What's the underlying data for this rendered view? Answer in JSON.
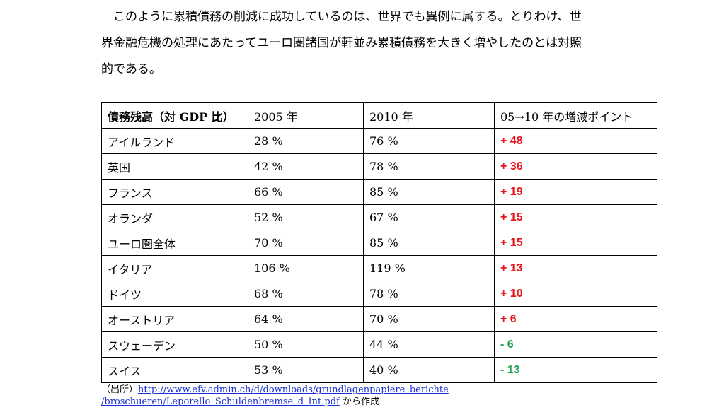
{
  "paragraph": {
    "line1": "このように累積債務の削減に成功しているのは、世界でも異例に属する。とりわけ、世",
    "line2": "界金融危機の処理にあたってユーロ圏諸国が軒並み累積債務を大きく増やしたのとは対照",
    "line3": "的である。"
  },
  "table": {
    "headers": [
      "債務残高（対 GDP 比）",
      "2005 年",
      "2010 年",
      "05→10 年の増減ポイント"
    ],
    "rows": [
      {
        "country": "アイルランド",
        "y2005": "28 %",
        "y2010": "76 %",
        "change": "+ 48",
        "direction": "increase"
      },
      {
        "country": "英国",
        "y2005": "42 %",
        "y2010": "78 %",
        "change": "+ 36",
        "direction": "increase"
      },
      {
        "country": "フランス",
        "y2005": "66 %",
        "y2010": "85 %",
        "change": "+ 19",
        "direction": "increase"
      },
      {
        "country": "オランダ",
        "y2005": "52 %",
        "y2010": "67 %",
        "change": "+ 15",
        "direction": "increase"
      },
      {
        "country": "ユーロ圏全体",
        "y2005": "70 %",
        "y2010": "85 %",
        "change": "+ 15",
        "direction": "increase"
      },
      {
        "country": "イタリア",
        "y2005": "106 %",
        "y2010": "119 %",
        "change": "+ 13",
        "direction": "increase"
      },
      {
        "country": "ドイツ",
        "y2005": "68 %",
        "y2010": "78 %",
        "change": "+ 10",
        "direction": "increase"
      },
      {
        "country": "オーストリア",
        "y2005": "64 %",
        "y2010": "70 %",
        "change": "+ 6",
        "direction": "increase"
      },
      {
        "country": "スウェーデン",
        "y2005": "50 %",
        "y2010": "44 %",
        "change": "- 6",
        "direction": "decrease"
      },
      {
        "country": "スイス",
        "y2005": "53 %",
        "y2010": "40 %",
        "change": "- 13",
        "direction": "decrease"
      }
    ]
  },
  "colors": {
    "increase": "#e8141b",
    "decrease": "#20a050",
    "link": "#1a2fd6"
  },
  "source": {
    "prefix": "（出所）",
    "link_line1": "http://www.efv.admin.ch/d/downloads/grundlagenpapiere_berichte",
    "link_line2": "/broschueren/Leporello_Schuldenbremse_d_Int.pdf",
    "suffix": " から作成"
  }
}
